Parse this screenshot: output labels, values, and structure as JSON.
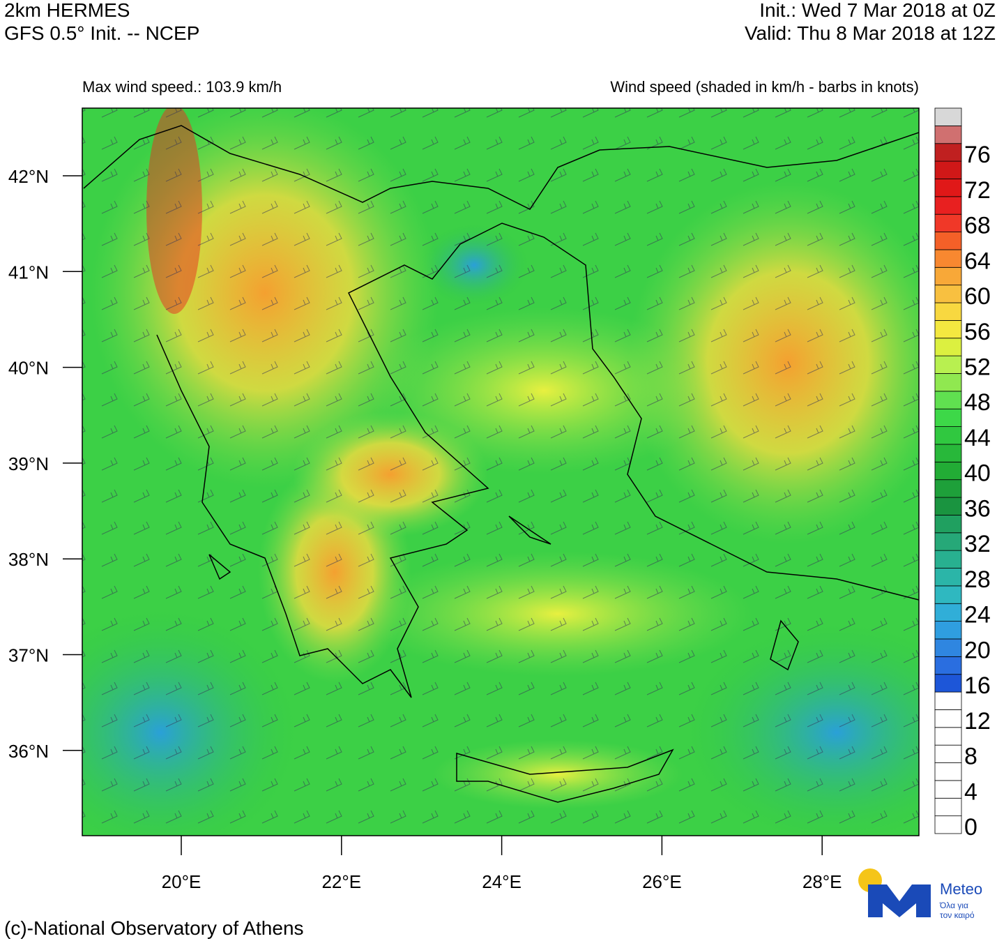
{
  "header": {
    "model": "2km HERMES",
    "init_source": "GFS 0.5° Init. -- NCEP",
    "init_time": "Init.:  Wed 7 Mar 2018 at 0Z",
    "valid_time": "Valid: Thu 8 Mar 2018 at 12Z"
  },
  "subheader": {
    "max_wind": "Max wind speed.: 103.9 km/h",
    "field": "Wind speed (shaded in km/h - barbs in knots)"
  },
  "map": {
    "lat_ticks": [
      {
        "value": 42,
        "label": "42°N"
      },
      {
        "value": 41,
        "label": "41°N"
      },
      {
        "value": 40,
        "label": "40°N"
      },
      {
        "value": 39,
        "label": "39°N"
      },
      {
        "value": 38,
        "label": "38°N"
      },
      {
        "value": 37,
        "label": "37°N"
      },
      {
        "value": 36,
        "label": "36°N"
      }
    ],
    "lon_ticks": [
      {
        "value": 20,
        "label": "20°E"
      },
      {
        "value": 22,
        "label": "22°E"
      },
      {
        "value": 24,
        "label": "24°E"
      },
      {
        "value": 26,
        "label": "26°E"
      },
      {
        "value": 28,
        "label": "28°E"
      }
    ]
  },
  "colorbar": {
    "ticks": [
      0,
      4,
      8,
      12,
      16,
      20,
      24,
      28,
      32,
      36,
      40,
      44,
      48,
      52,
      56,
      60,
      64,
      68,
      72,
      76
    ],
    "colors": [
      "#ffffff",
      "#ffffff",
      "#ffffff",
      "#ffffff",
      "#ffffff",
      "#ffffff",
      "#ffffff",
      "#ffffff",
      "#1d56d8",
      "#2a6ee0",
      "#2f86e0",
      "#2f9ee0",
      "#30aed8",
      "#2fb8c0",
      "#2bb5a8",
      "#28b090",
      "#26a878",
      "#20a060",
      "#1a9440",
      "#1ea03a",
      "#22ac35",
      "#28b83a",
      "#30c840",
      "#3dd848",
      "#60e050",
      "#90e850",
      "#b8f050",
      "#dcf040",
      "#f4e840",
      "#f8d840",
      "#f8c040",
      "#f8a838",
      "#f88830",
      "#f46028",
      "#f03828",
      "#e82020",
      "#e01818",
      "#d01818",
      "#c02020",
      "#d07070",
      "#d8d8d8"
    ]
  },
  "footer": {
    "copyright": "(c)-National Observatory of Athens",
    "logo_name": "Meteo",
    "logo_tagline_1": "Όλα για",
    "logo_tagline_2": "τον καιρό"
  }
}
